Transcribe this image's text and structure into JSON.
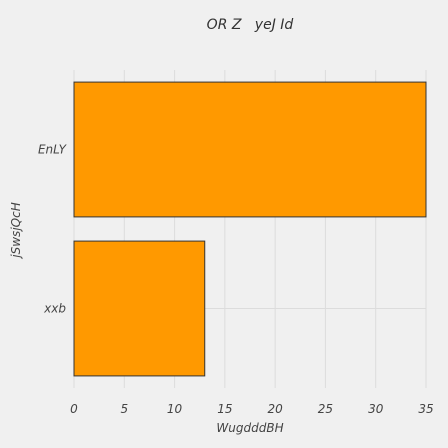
{
  "chart_data": {
    "type": "bar",
    "orientation": "horizontal",
    "title": "OR Z   yeJ Id",
    "xlabel": "WugdddBH",
    "ylabel": "jSwsjQcH",
    "categories": [
      "xxb",
      "EnLY"
    ],
    "values": [
      13,
      35
    ],
    "xlim": [
      0,
      35
    ],
    "xticks": [
      0,
      5,
      10,
      15,
      20,
      25,
      30,
      35
    ],
    "grid": true,
    "bar_color": "#ff9900",
    "bar_edge_color": "#333333",
    "background": "#f0f0f0"
  }
}
